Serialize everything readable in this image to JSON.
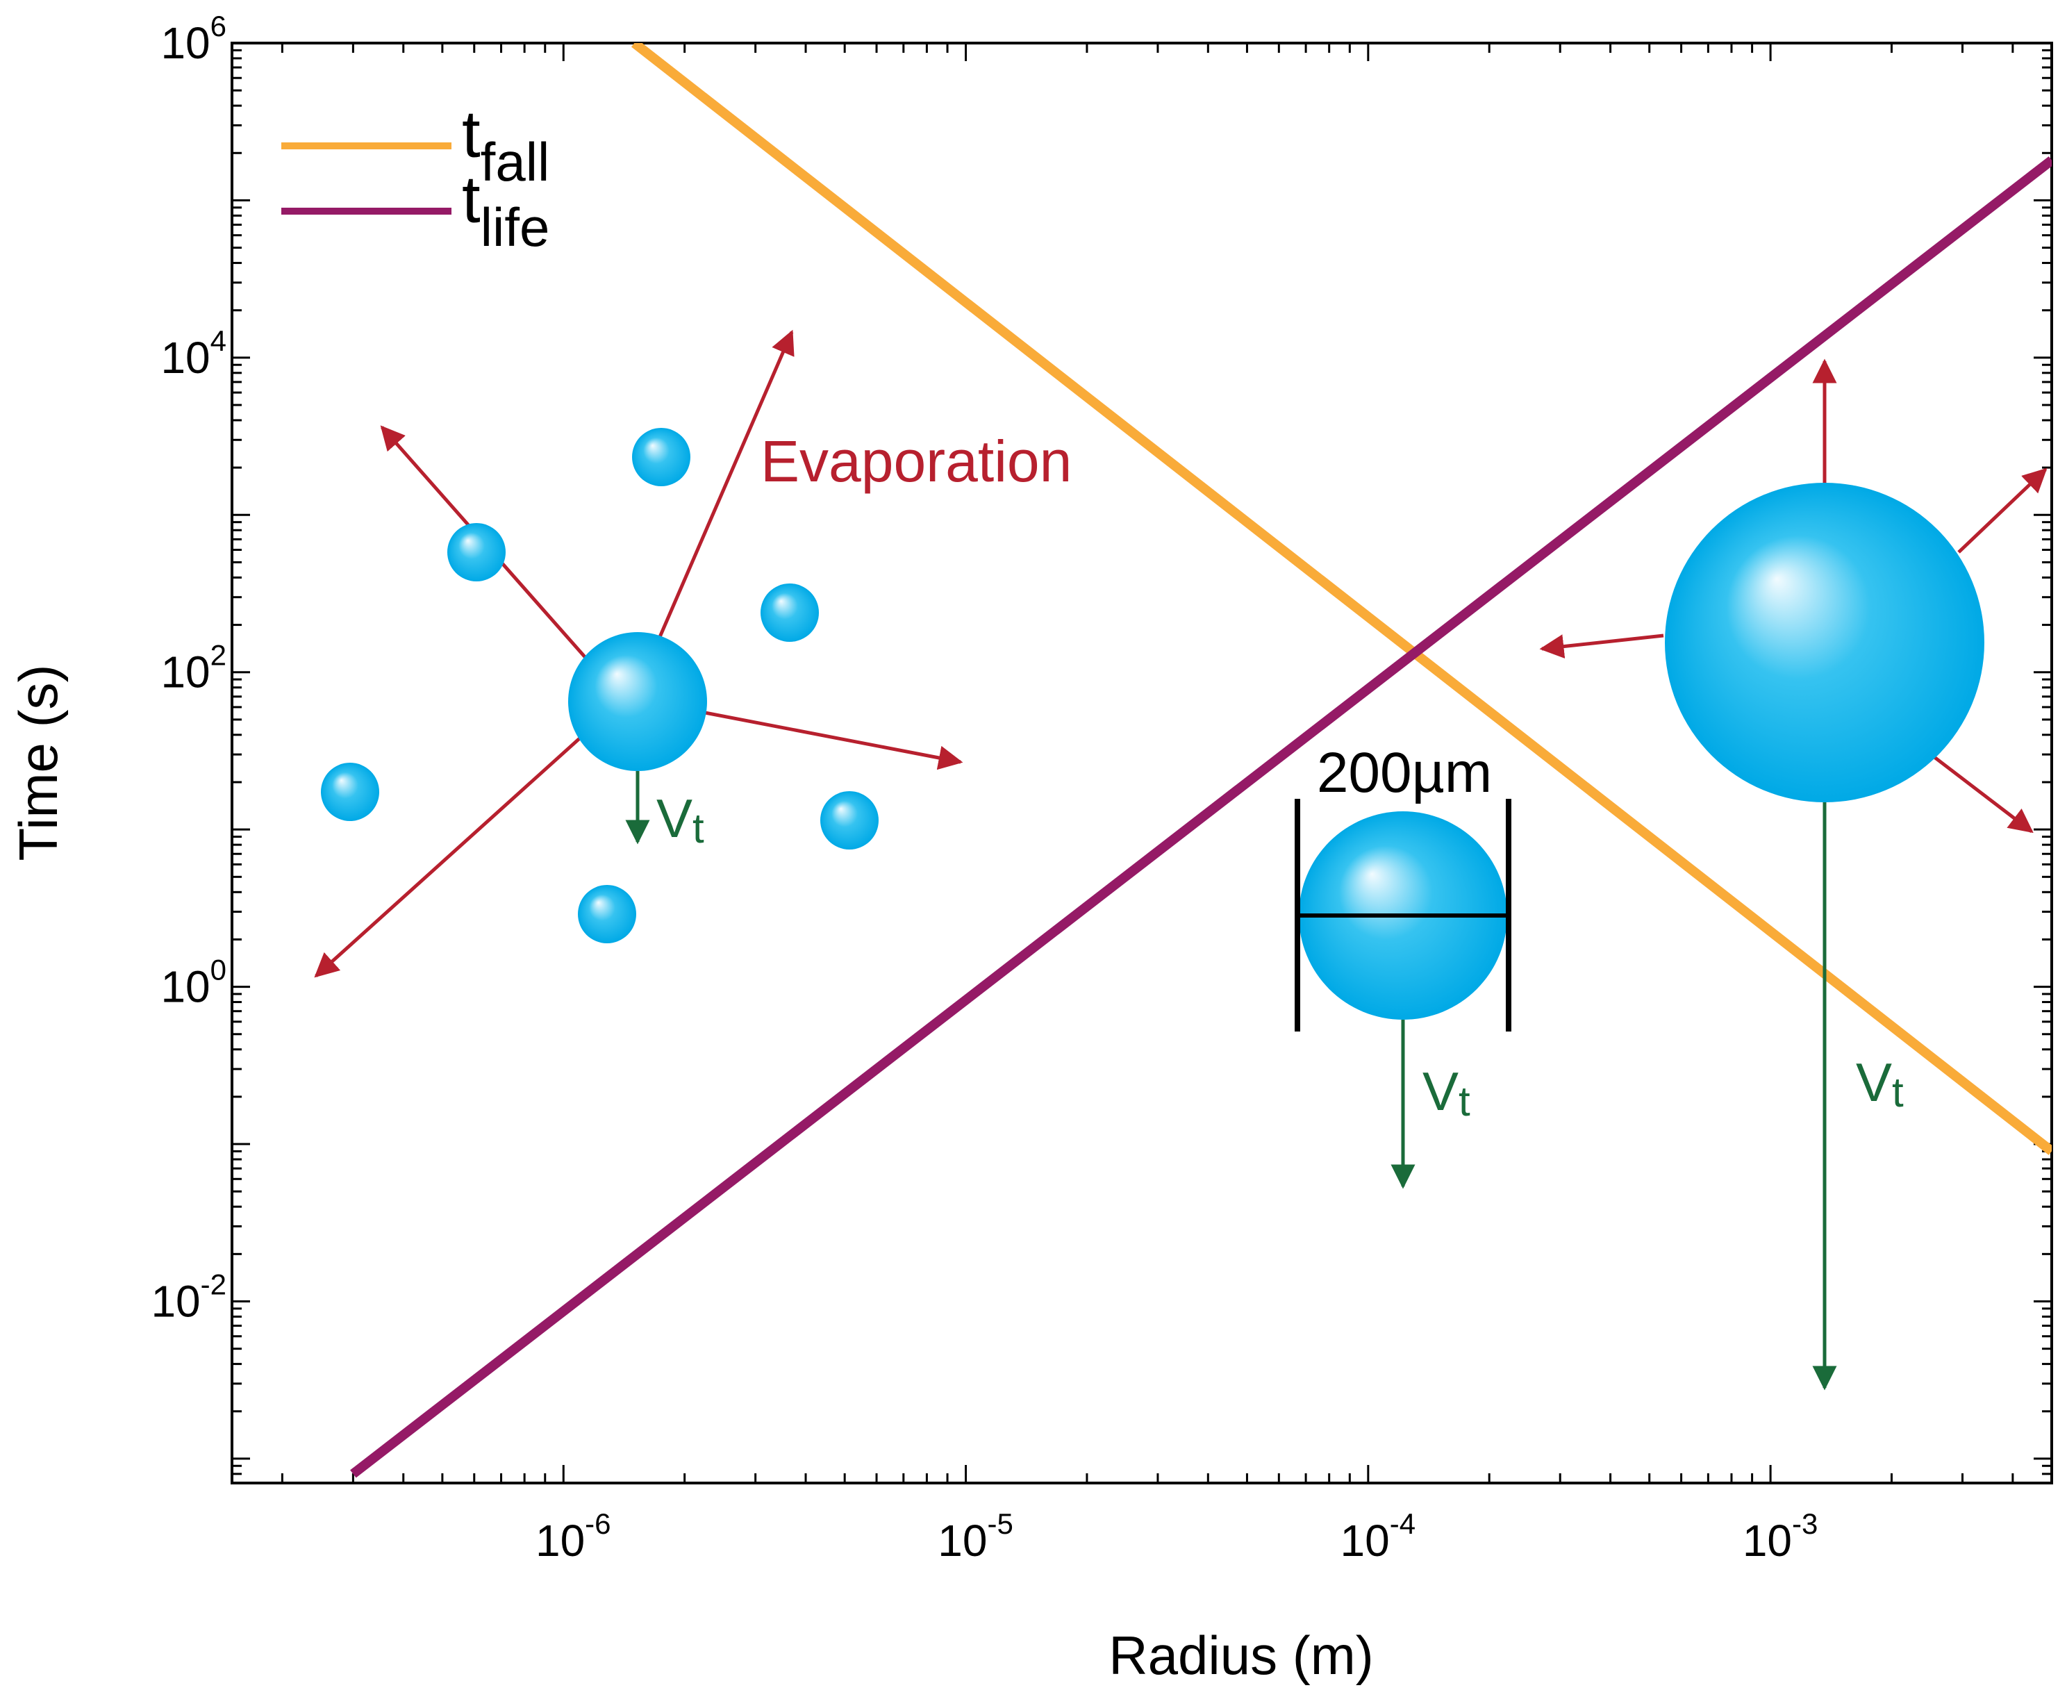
{
  "chart_data": {
    "type": "line",
    "title": "",
    "xlabel": "Radius (m)",
    "ylabel": "Time (s)",
    "xscale": "log",
    "yscale": "log",
    "xlim": [
      1.5e-07,
      0.005
    ],
    "ylim": [
      0.0007,
      1000000
    ],
    "xticks": [
      {
        "value": 1e-06,
        "base": "10",
        "exp": "-6"
      },
      {
        "value": 1e-05,
        "base": "10",
        "exp": "-5"
      },
      {
        "value": 0.0001,
        "base": "10",
        "exp": "-4"
      },
      {
        "value": 0.001,
        "base": "10",
        "exp": "-3"
      }
    ],
    "yticks": [
      {
        "value": 0.01,
        "base": "10",
        "exp": "-2"
      },
      {
        "value": 1,
        "base": "10",
        "exp": "0"
      },
      {
        "value": 100,
        "base": "10",
        "exp": "2"
      },
      {
        "value": 10000,
        "base": "10",
        "exp": "4"
      },
      {
        "value": 1000000,
        "base": "10",
        "exp": "6"
      }
    ],
    "legend_position": "top-left",
    "series": [
      {
        "name": "t_fall",
        "label_main": "t",
        "label_sub": "fall",
        "color": "#F9AB39",
        "x": [
          1.5e-06,
          0.005
        ],
        "y": [
          1000000,
          0.09
        ]
      },
      {
        "name": "t_life",
        "label_main": "t",
        "label_sub": "life",
        "color": "#951A66",
        "x": [
          3e-07,
          0.005
        ],
        "y": [
          0.0008,
          180000
        ]
      }
    ],
    "annotations": {
      "evaporation_label": "Evaporation",
      "velocity_main": "V",
      "velocity_sub": "t",
      "diameter_label": "200µm"
    }
  },
  "colors": {
    "axis": "#000000",
    "evaporation_arrow": "#B7202E",
    "velocity_arrow": "#1A6B3A",
    "droplet_light": "#F2FBFF",
    "droplet_mid": "#36C3F0",
    "droplet_dark": "#00A9E6"
  }
}
